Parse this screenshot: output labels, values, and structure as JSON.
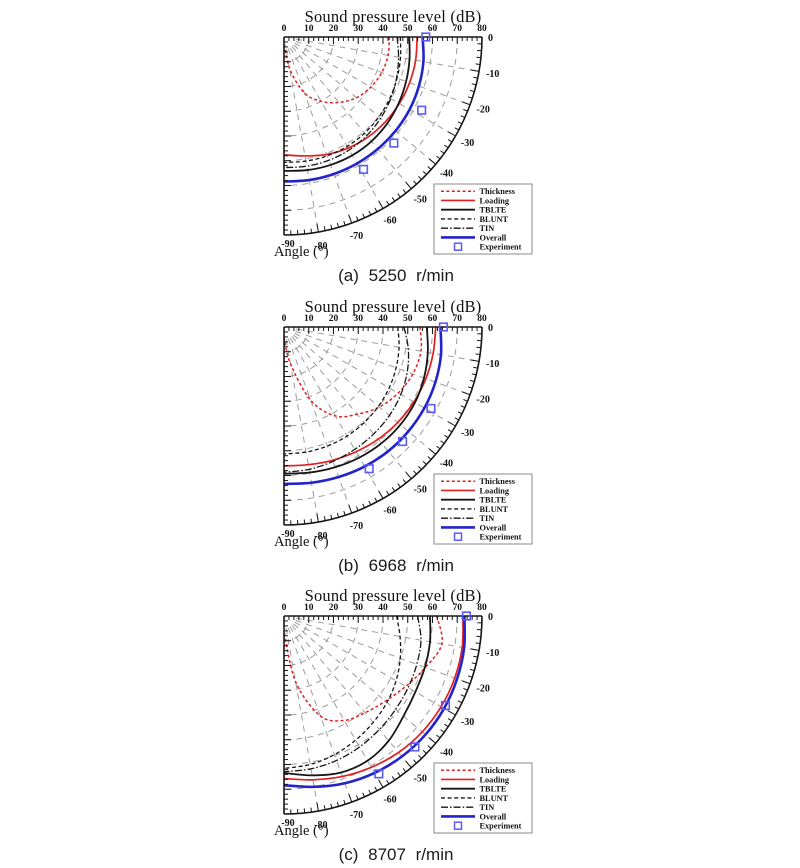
{
  "figure": {
    "background": "#ffffff"
  },
  "shared": {
    "title": "Sound pressure level (dB)",
    "angle_label": "Angle (°)",
    "radial_axis": {
      "unit": "dB",
      "min": 0,
      "max": 80,
      "major_step": 10,
      "minor_step": 2,
      "tick_labels": [
        "0",
        "10",
        "20",
        "30",
        "40",
        "50",
        "60",
        "70",
        "80"
      ]
    },
    "angle_axis": {
      "unit": "deg",
      "min": -90,
      "max": 0,
      "major_step": 10,
      "minor_step": 2,
      "tick_labels": [
        "0",
        "-10",
        "-20",
        "-30",
        "-40",
        "-50",
        "-60",
        "-70",
        "-80",
        "-90"
      ]
    },
    "colors": {
      "red": "#e02020",
      "black": "#161616",
      "blue": "#2323cb",
      "experiment_blue": "#5a5af5",
      "grid": "#9c9c9c",
      "axis": "#161616",
      "legend_border": "#8a8a8a",
      "text": "#111111"
    },
    "legend": {
      "position": "lower-right",
      "items": [
        {
          "label": "Thickness",
          "color": "#e02020",
          "dash": "3,2.4",
          "width": 1.5
        },
        {
          "label": "Loading",
          "color": "#e02020",
          "dash": "",
          "width": 1.7
        },
        {
          "label": "TBLTE",
          "color": "#161616",
          "dash": "",
          "width": 1.8
        },
        {
          "label": "BLUNT",
          "color": "#161616",
          "dash": "4,2.6",
          "width": 1.3
        },
        {
          "label": "TIN",
          "color": "#161616",
          "dash": "7,2,1.6,2",
          "width": 1.3
        },
        {
          "label": "Overall",
          "color": "#2323cb",
          "dash": "",
          "width": 2.6
        },
        {
          "label": "Experiment",
          "marker": "square",
          "color": "#5a5af5"
        }
      ]
    }
  },
  "chart_data": [
    {
      "type": "line",
      "subtype": "polar-quarter",
      "caption": "(a) 5250 r/min",
      "rpm": 5250,
      "angles_deg": [
        0,
        -10,
        -20,
        -30,
        -40,
        -50,
        -60,
        -70,
        -80,
        -90
      ],
      "series": [
        {
          "name": "Thickness",
          "values": [
            42.5,
            42.7,
            42.0,
            40.5,
            38.2,
            34.5,
            30.0,
            24.0,
            13.0,
            2.0
          ]
        },
        {
          "name": "Loading",
          "values": [
            53.8,
            54.0,
            54.0,
            53.8,
            53.4,
            52.8,
            51.8,
            50.5,
            48.8,
            47.6
          ]
        },
        {
          "name": "TBLTE",
          "values": [
            50.6,
            51.5,
            52.5,
            53.5,
            54.4,
            55.0,
            55.2,
            55.0,
            54.6,
            54.1
          ]
        },
        {
          "name": "BLUNT",
          "values": [
            47.0,
            47.8,
            48.6,
            49.4,
            50.1,
            50.7,
            51.0,
            51.1,
            50.9,
            50.7
          ]
        },
        {
          "name": "TIN",
          "values": [
            45.7,
            47.0,
            48.4,
            49.8,
            51.0,
            52.0,
            52.7,
            53.0,
            53.0,
            52.8
          ]
        },
        {
          "name": "Overall",
          "values": [
            56.0,
            57.2,
            58.0,
            58.6,
            58.9,
            59.0,
            59.0,
            58.9,
            58.7,
            58.4
          ]
        }
      ],
      "experiment": {
        "angles_deg": [
          0,
          -28,
          -44,
          -59
        ],
        "values": [
          57.3,
          63.0,
          61.7,
          62.4
        ]
      }
    },
    {
      "type": "line",
      "subtype": "polar-quarter",
      "caption": "(b) 6968 r/min",
      "rpm": 6968,
      "angles_deg": [
        0,
        -10,
        -20,
        -30,
        -40,
        -50,
        -60,
        -70,
        -80,
        -90
      ],
      "series": [
        {
          "name": "Thickness",
          "values": [
            55.0,
            56.2,
            55.4,
            53.3,
            50.3,
            46.0,
            41.5,
            31.5,
            15.0,
            4.0
          ]
        },
        {
          "name": "Loading",
          "values": [
            61.3,
            61.2,
            61.0,
            60.6,
            60.0,
            59.2,
            58.2,
            57.3,
            56.5,
            56.1
          ]
        },
        {
          "name": "TBLTE",
          "values": [
            57.7,
            59.0,
            60.2,
            61.1,
            61.4,
            61.3,
            60.9,
            60.3,
            59.7,
            59.3
          ]
        },
        {
          "name": "BLUNT",
          "values": [
            46.0,
            47.2,
            48.2,
            49.1,
            49.8,
            50.4,
            50.9,
            51.2,
            51.3,
            51.3
          ]
        },
        {
          "name": "TIN",
          "values": [
            48.5,
            51.0,
            53.0,
            54.5,
            55.6,
            56.4,
            57.1,
            57.8,
            58.4,
            58.7
          ]
        },
        {
          "name": "Overall",
          "values": [
            63.2,
            64.4,
            65.1,
            65.5,
            65.6,
            65.5,
            65.1,
            64.5,
            63.9,
            63.4
          ]
        }
      ],
      "experiment": {
        "angles_deg": [
          0,
          -29,
          -44,
          -59
        ],
        "values": [
          64.4,
          67.9,
          66.6,
          66.8
        ]
      }
    },
    {
      "type": "line",
      "subtype": "polar-quarter",
      "caption": "(c) 8707 r/min",
      "rpm": 8707,
      "angles_deg": [
        0,
        -10,
        -20,
        -30,
        -40,
        -50,
        -60,
        -70,
        -80,
        -90
      ],
      "series": [
        {
          "name": "Thickness",
          "values": [
            61.7,
            64.8,
            60.8,
            56.8,
            53.5,
            51.0,
            48.7,
            43.0,
            27.0,
            6.0
          ]
        },
        {
          "name": "Loading",
          "values": [
            72.3,
            73.1,
            73.4,
            73.3,
            72.9,
            72.0,
            70.6,
            69.0,
            67.2,
            65.7
          ]
        },
        {
          "name": "TBLTE",
          "values": [
            59.0,
            59.9,
            60.6,
            61.3,
            63.0,
            65.8,
            67.5,
            67.3,
            65.4,
            63.4
          ]
        },
        {
          "name": "BLUNT",
          "values": [
            45.5,
            47.6,
            50.0,
            52.3,
            54.3,
            56.1,
            57.9,
            59.6,
            60.9,
            61.6
          ]
        },
        {
          "name": "TIN",
          "values": [
            54.0,
            56.2,
            57.1,
            57.9,
            58.8,
            59.9,
            61.1,
            62.1,
            62.7,
            62.9
          ]
        },
        {
          "name": "Overall",
          "values": [
            72.9,
            73.9,
            74.4,
            74.7,
            74.6,
            74.1,
            73.2,
            71.9,
            70.1,
            68.4
          ]
        }
      ],
      "experiment": {
        "angles_deg": [
          0,
          -29,
          -45,
          -59
        ],
        "values": [
          73.7,
          74.6,
          74.8,
          74.4
        ]
      }
    }
  ]
}
